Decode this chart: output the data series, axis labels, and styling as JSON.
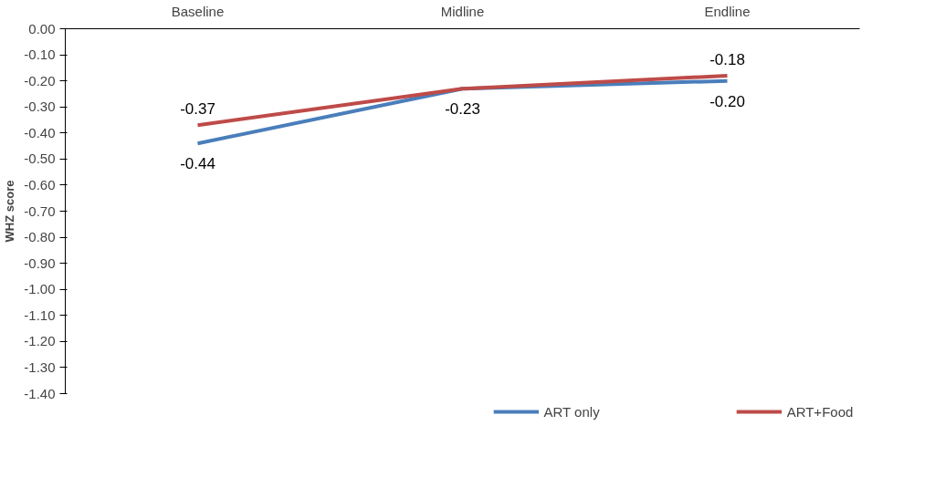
{
  "chart_data": {
    "type": "line",
    "ylabel": "WHZ score",
    "categories": [
      "Baseline",
      "Midline",
      "Endline"
    ],
    "series": [
      {
        "name": "ART only",
        "color": "#4a7ebb",
        "values": [
          -0.44,
          -0.23,
          -0.2
        ],
        "value_labels": [
          "-0.44",
          "-0.23",
          "-0.20"
        ]
      },
      {
        "name": "ART+Food",
        "color": "#be4b48",
        "values": [
          -0.37,
          -0.23,
          -0.18
        ],
        "value_labels": [
          "-0.37",
          null,
          "-0.18"
        ]
      }
    ],
    "ylim": [
      -1.4,
      0
    ],
    "yticks": [
      {
        "value": 0,
        "label": "0.00"
      },
      {
        "value": -0.1,
        "label": "-0.10"
      },
      {
        "value": -0.2,
        "label": "-0.20"
      },
      {
        "value": -0.3,
        "label": "-0.30"
      },
      {
        "value": -0.4,
        "label": "-0.40"
      },
      {
        "value": -0.5,
        "label": "-0.50"
      },
      {
        "value": -0.6,
        "label": "-0.60"
      },
      {
        "value": -0.7,
        "label": "-0.70"
      },
      {
        "value": -0.8,
        "label": "-0.80"
      },
      {
        "value": -0.9,
        "label": "-0.90"
      },
      {
        "value": -1.0,
        "label": "-1.00"
      },
      {
        "value": -1.1,
        "label": "-1.10"
      },
      {
        "value": -1.2,
        "label": "-1.20"
      },
      {
        "value": -1.3,
        "label": "-1.30"
      },
      {
        "value": -1.4,
        "label": "-1.40"
      }
    ],
    "grid": false,
    "legend": "bottom",
    "marker": "none",
    "line_style": "solid"
  }
}
